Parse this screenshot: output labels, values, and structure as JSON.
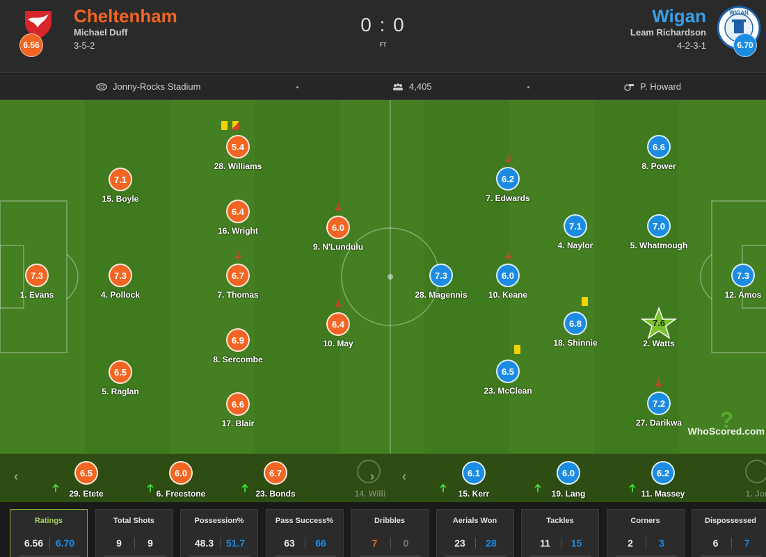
{
  "match": {
    "home": {
      "name": "Cheltenham",
      "manager": "Michael Duff",
      "formation": "3-5-2",
      "rating": "6.56",
      "color": "#f26522"
    },
    "away": {
      "name": "Wigan",
      "manager": "Leam Richardson",
      "formation": "4-2-3-1",
      "rating": "6.70",
      "color": "#1c8ce3",
      "crest_text": "WIGAN"
    },
    "score": "0 : 0",
    "status": "FT"
  },
  "info": {
    "stadium": "Jonny-Rocks Stadium",
    "attendance": "4,405",
    "referee": "P. Howard",
    "stadium_icon": "stadium-icon",
    "attendance_icon": "crowd-icon",
    "referee_icon": "whistle-icon"
  },
  "home_players": [
    {
      "id": "evans",
      "label": "1. Evans",
      "rating": "7.3"
    },
    {
      "id": "boyle",
      "label": "15. Boyle",
      "rating": "7.1"
    },
    {
      "id": "pollock",
      "label": "4. Pollock",
      "rating": "7.3"
    },
    {
      "id": "raglan",
      "label": "5. Raglan",
      "rating": "6.5"
    },
    {
      "id": "williams",
      "label": "28. Williams",
      "rating": "5.4"
    },
    {
      "id": "wright",
      "label": "16. Wright",
      "rating": "6.4"
    },
    {
      "id": "thomas",
      "label": "7. Thomas",
      "rating": "6.7"
    },
    {
      "id": "sercombe",
      "label": "8. Sercombe",
      "rating": "6.9"
    },
    {
      "id": "blair",
      "label": "17. Blair",
      "rating": "6.6"
    },
    {
      "id": "nlundulu",
      "label": "9. N'Lundulu",
      "rating": "6.0"
    },
    {
      "id": "may",
      "label": "10. May",
      "rating": "6.4"
    }
  ],
  "away_players": [
    {
      "id": "magennis",
      "label": "28. Magennis",
      "rating": "7.3"
    },
    {
      "id": "edwards",
      "label": "7. Edwards",
      "rating": "6.2"
    },
    {
      "id": "keane",
      "label": "10. Keane",
      "rating": "6.0"
    },
    {
      "id": "mcclean",
      "label": "23. McClean",
      "rating": "6.5"
    },
    {
      "id": "naylor",
      "label": "4. Naylor",
      "rating": "7.1"
    },
    {
      "id": "shinnie",
      "label": "18. Shinnie",
      "rating": "6.8"
    },
    {
      "id": "power",
      "label": "8. Power",
      "rating": "6.6"
    },
    {
      "id": "whatmough",
      "label": "5. Whatmough",
      "rating": "7.0"
    },
    {
      "id": "watts",
      "label": "2. Watts",
      "rating": "7.6"
    },
    {
      "id": "darikwa",
      "label": "27. Darikwa",
      "rating": "7.2"
    },
    {
      "id": "amos",
      "label": "12. Amos",
      "rating": "7.3"
    }
  ],
  "events": {
    "subbed_off": [
      "thomas",
      "nlundulu",
      "may",
      "edwards",
      "keane",
      "darikwa"
    ],
    "yellow_cards": [
      "mcclean",
      "shinnie"
    ],
    "second_yellow": [
      "williams"
    ],
    "man_of_the_match": "watts"
  },
  "substitutes": {
    "home": [
      {
        "label": "29. Etete",
        "rating": "6.5"
      },
      {
        "label": "6. Freestone",
        "rating": "6.0"
      },
      {
        "label": "23. Bonds",
        "rating": "6.7"
      },
      {
        "label": "14. Willi",
        "rating": ""
      }
    ],
    "away": [
      {
        "label": "15. Kerr",
        "rating": "6.1"
      },
      {
        "label": "19. Lang",
        "rating": "6.0"
      },
      {
        "label": "11. Massey",
        "rating": "6.2"
      },
      {
        "label": "1. Jon",
        "rating": ""
      }
    ]
  },
  "stats": [
    {
      "title": "Ratings",
      "home": "6.56",
      "away": "6.70",
      "active": true,
      "leader": "away"
    },
    {
      "title": "Total Shots",
      "home": "9",
      "away": "9",
      "leader": "none"
    },
    {
      "title": "Possession%",
      "home": "48.3",
      "away": "51.7",
      "leader": "away"
    },
    {
      "title": "Pass Success%",
      "home": "63",
      "away": "66",
      "leader": "away"
    },
    {
      "title": "Dribbles",
      "home": "7",
      "away": "0",
      "leader": "home"
    },
    {
      "title": "Aerials Won",
      "home": "23",
      "away": "28",
      "leader": "away"
    },
    {
      "title": "Tackles",
      "home": "11",
      "away": "15",
      "leader": "away"
    },
    {
      "title": "Corners",
      "home": "2",
      "away": "3",
      "leader": "away"
    },
    {
      "title": "Dispossessed",
      "home": "6",
      "away": "7",
      "leader": "away"
    }
  ],
  "branding": {
    "logo_text": "WhoScored",
    "logo_suffix": ".com"
  }
}
